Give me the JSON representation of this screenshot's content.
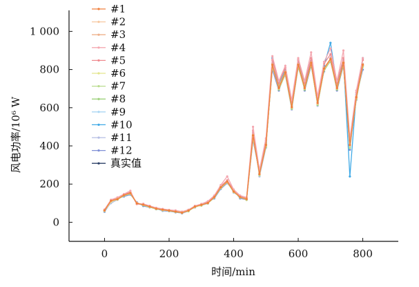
{
  "chart_data": {
    "type": "line",
    "xlabel": "时间/min",
    "ylabel": "风电功率/10⁶ W",
    "xlim": [
      -110,
      910
    ],
    "ylim": [
      -100,
      1110
    ],
    "xticks": [
      0,
      200,
      400,
      600,
      800
    ],
    "xtick_labels": [
      "0",
      "200",
      "400",
      "600",
      "800"
    ],
    "yticks": [
      0,
      200,
      400,
      600,
      800,
      1000
    ],
    "ytick_labels": [
      "0",
      "200",
      "400",
      "600",
      "800",
      "1 000"
    ],
    "grid": false,
    "legend_placement": "top-left",
    "x": [
      0,
      20,
      40,
      60,
      80,
      100,
      120,
      140,
      160,
      180,
      200,
      220,
      240,
      260,
      280,
      300,
      320,
      340,
      360,
      380,
      400,
      420,
      440,
      460,
      480,
      500,
      520,
      540,
      560,
      580,
      600,
      620,
      640,
      660,
      680,
      700,
      720,
      740,
      760,
      780,
      800
    ],
    "series": [
      {
        "name": "真实值",
        "color": "#2b3f66",
        "values": [
          60,
          110,
          120,
          140,
          150,
          100,
          90,
          80,
          70,
          65,
          60,
          55,
          50,
          60,
          80,
          90,
          100,
          130,
          180,
          210,
          160,
          130,
          120,
          450,
          250,
          400,
          820,
          700,
          780,
          600,
          820,
          700,
          830,
          620,
          800,
          850,
          700,
          830,
          400,
          650,
          820
        ]
      },
      {
        "name": "#12",
        "color": "#7f8fd6",
        "values": [
          55,
          105,
          125,
          135,
          145,
          105,
          85,
          78,
          72,
          60,
          58,
          52,
          48,
          62,
          78,
          95,
          105,
          125,
          175,
          205,
          165,
          125,
          118,
          430,
          260,
          420,
          800,
          690,
          790,
          620,
          840,
          690,
          820,
          640,
          790,
          860,
          690,
          820,
          380,
          660,
          800
        ]
      },
      {
        "name": "#11",
        "color": "#b4bde3",
        "values": [
          62,
          100,
          118,
          142,
          155,
          98,
          92,
          82,
          68,
          66,
          62,
          57,
          46,
          58,
          82,
          88,
          98,
          135,
          185,
          215,
          155,
          135,
          125,
          470,
          240,
          390,
          830,
          710,
          770,
          590,
          810,
          710,
          840,
          610,
          810,
          840,
          710,
          840,
          410,
          640,
          830
        ]
      },
      {
        "name": "#10",
        "color": "#3fa9e6",
        "values": [
          58,
          112,
          122,
          138,
          148,
          102,
          88,
          80,
          70,
          63,
          60,
          55,
          52,
          61,
          79,
          92,
          102,
          128,
          178,
          212,
          162,
          128,
          122,
          460,
          255,
          410,
          860,
          720,
          800,
          610,
          850,
          720,
          860,
          630,
          820,
          940,
          720,
          850,
          240,
          670,
          860
        ]
      },
      {
        "name": "#9",
        "color": "#a9d6f3",
        "values": [
          61,
          108,
          121,
          141,
          151,
          99,
          91,
          81,
          71,
          64,
          61,
          56,
          51,
          59,
          81,
          89,
          101,
          131,
          181,
          208,
          159,
          131,
          119,
          455,
          248,
          405,
          815,
          705,
          785,
          605,
          825,
          705,
          835,
          625,
          805,
          855,
          705,
          835,
          395,
          655,
          825
        ]
      },
      {
        "name": "#8",
        "color": "#9cd07a",
        "values": [
          63,
          111,
          119,
          139,
          149,
          101,
          89,
          79,
          69,
          66,
          59,
          54,
          49,
          61,
          79,
          91,
          99,
          129,
          179,
          209,
          161,
          129,
          121,
          445,
          252,
          395,
          825,
          695,
          775,
          595,
          815,
          695,
          825,
          615,
          795,
          845,
          695,
          825,
          405,
          645,
          815
        ]
      },
      {
        "name": "#7",
        "color": "#b9dc8e",
        "values": [
          59,
          109,
          123,
          143,
          152,
          97,
          93,
          83,
          73,
          62,
          62,
          58,
          53,
          57,
          83,
          87,
          103,
          133,
          183,
          211,
          158,
          133,
          117,
          465,
          246,
          415,
          810,
          715,
          790,
          610,
          830,
          715,
          830,
          635,
          800,
          850,
          715,
          830,
          390,
          660,
          820
        ]
      },
      {
        "name": "#6",
        "color": "#e3e58c",
        "values": [
          60,
          107,
          120,
          140,
          150,
          100,
          90,
          80,
          70,
          65,
          60,
          55,
          50,
          60,
          80,
          90,
          100,
          130,
          180,
          210,
          160,
          130,
          120,
          440,
          260,
          400,
          820,
          700,
          780,
          600,
          820,
          700,
          830,
          620,
          800,
          850,
          700,
          830,
          420,
          650,
          820
        ]
      },
      {
        "name": "#5",
        "color": "#ef8a8f",
        "values": [
          65,
          115,
          128,
          146,
          158,
          95,
          95,
          85,
          75,
          68,
          64,
          60,
          55,
          65,
          85,
          95,
          108,
          138,
          190,
          220,
          170,
          138,
          128,
          480,
          270,
          430,
          850,
          730,
          810,
          630,
          850,
          730,
          860,
          650,
          830,
          880,
          730,
          860,
          430,
          680,
          850
        ]
      },
      {
        "name": "#4",
        "color": "#f4a7b0",
        "values": [
          67,
          118,
          130,
          148,
          165,
          96,
          97,
          86,
          76,
          70,
          65,
          62,
          56,
          66,
          86,
          96,
          110,
          140,
          195,
          240,
          172,
          140,
          130,
          500,
          275,
          440,
          870,
          740,
          820,
          640,
          860,
          740,
          890,
          660,
          840,
          910,
          740,
          900,
          440,
          690,
          860
        ]
      },
      {
        "name": "#3",
        "color": "#eeb08a",
        "values": [
          62,
          112,
          124,
          142,
          154,
          102,
          92,
          82,
          72,
          66,
          62,
          57,
          52,
          62,
          82,
          92,
          102,
          132,
          184,
          214,
          164,
          132,
          124,
          458,
          256,
          408,
          828,
          708,
          788,
          608,
          828,
          708,
          838,
          628,
          808,
          858,
          708,
          838,
          408,
          658,
          828
        ]
      },
      {
        "name": "#2",
        "color": "#f7c8a0",
        "values": [
          61,
          111,
          122,
          141,
          152,
          101,
          91,
          81,
          71,
          65,
          61,
          56,
          51,
          61,
          81,
          91,
          101,
          131,
          182,
          212,
          162,
          131,
          122,
          452,
          252,
          402,
          822,
          702,
          782,
          602,
          822,
          702,
          832,
          622,
          802,
          852,
          702,
          832,
          402,
          652,
          822
        ]
      },
      {
        "name": "#1",
        "color": "#f07f3c",
        "values": [
          62,
          113,
          121,
          142,
          153,
          99,
          92,
          82,
          71,
          66,
          61,
          56,
          50,
          61,
          82,
          91,
          101,
          132,
          183,
          213,
          161,
          132,
          121,
          455,
          252,
          405,
          825,
          703,
          785,
          603,
          825,
          703,
          835,
          625,
          805,
          855,
          703,
          835,
          405,
          655,
          825
        ]
      }
    ],
    "legend_order": [
      "#1",
      "#2",
      "#3",
      "#4",
      "#5",
      "#6",
      "#7",
      "#8",
      "#9",
      "#10",
      "#11",
      "#12",
      "真实值"
    ]
  }
}
